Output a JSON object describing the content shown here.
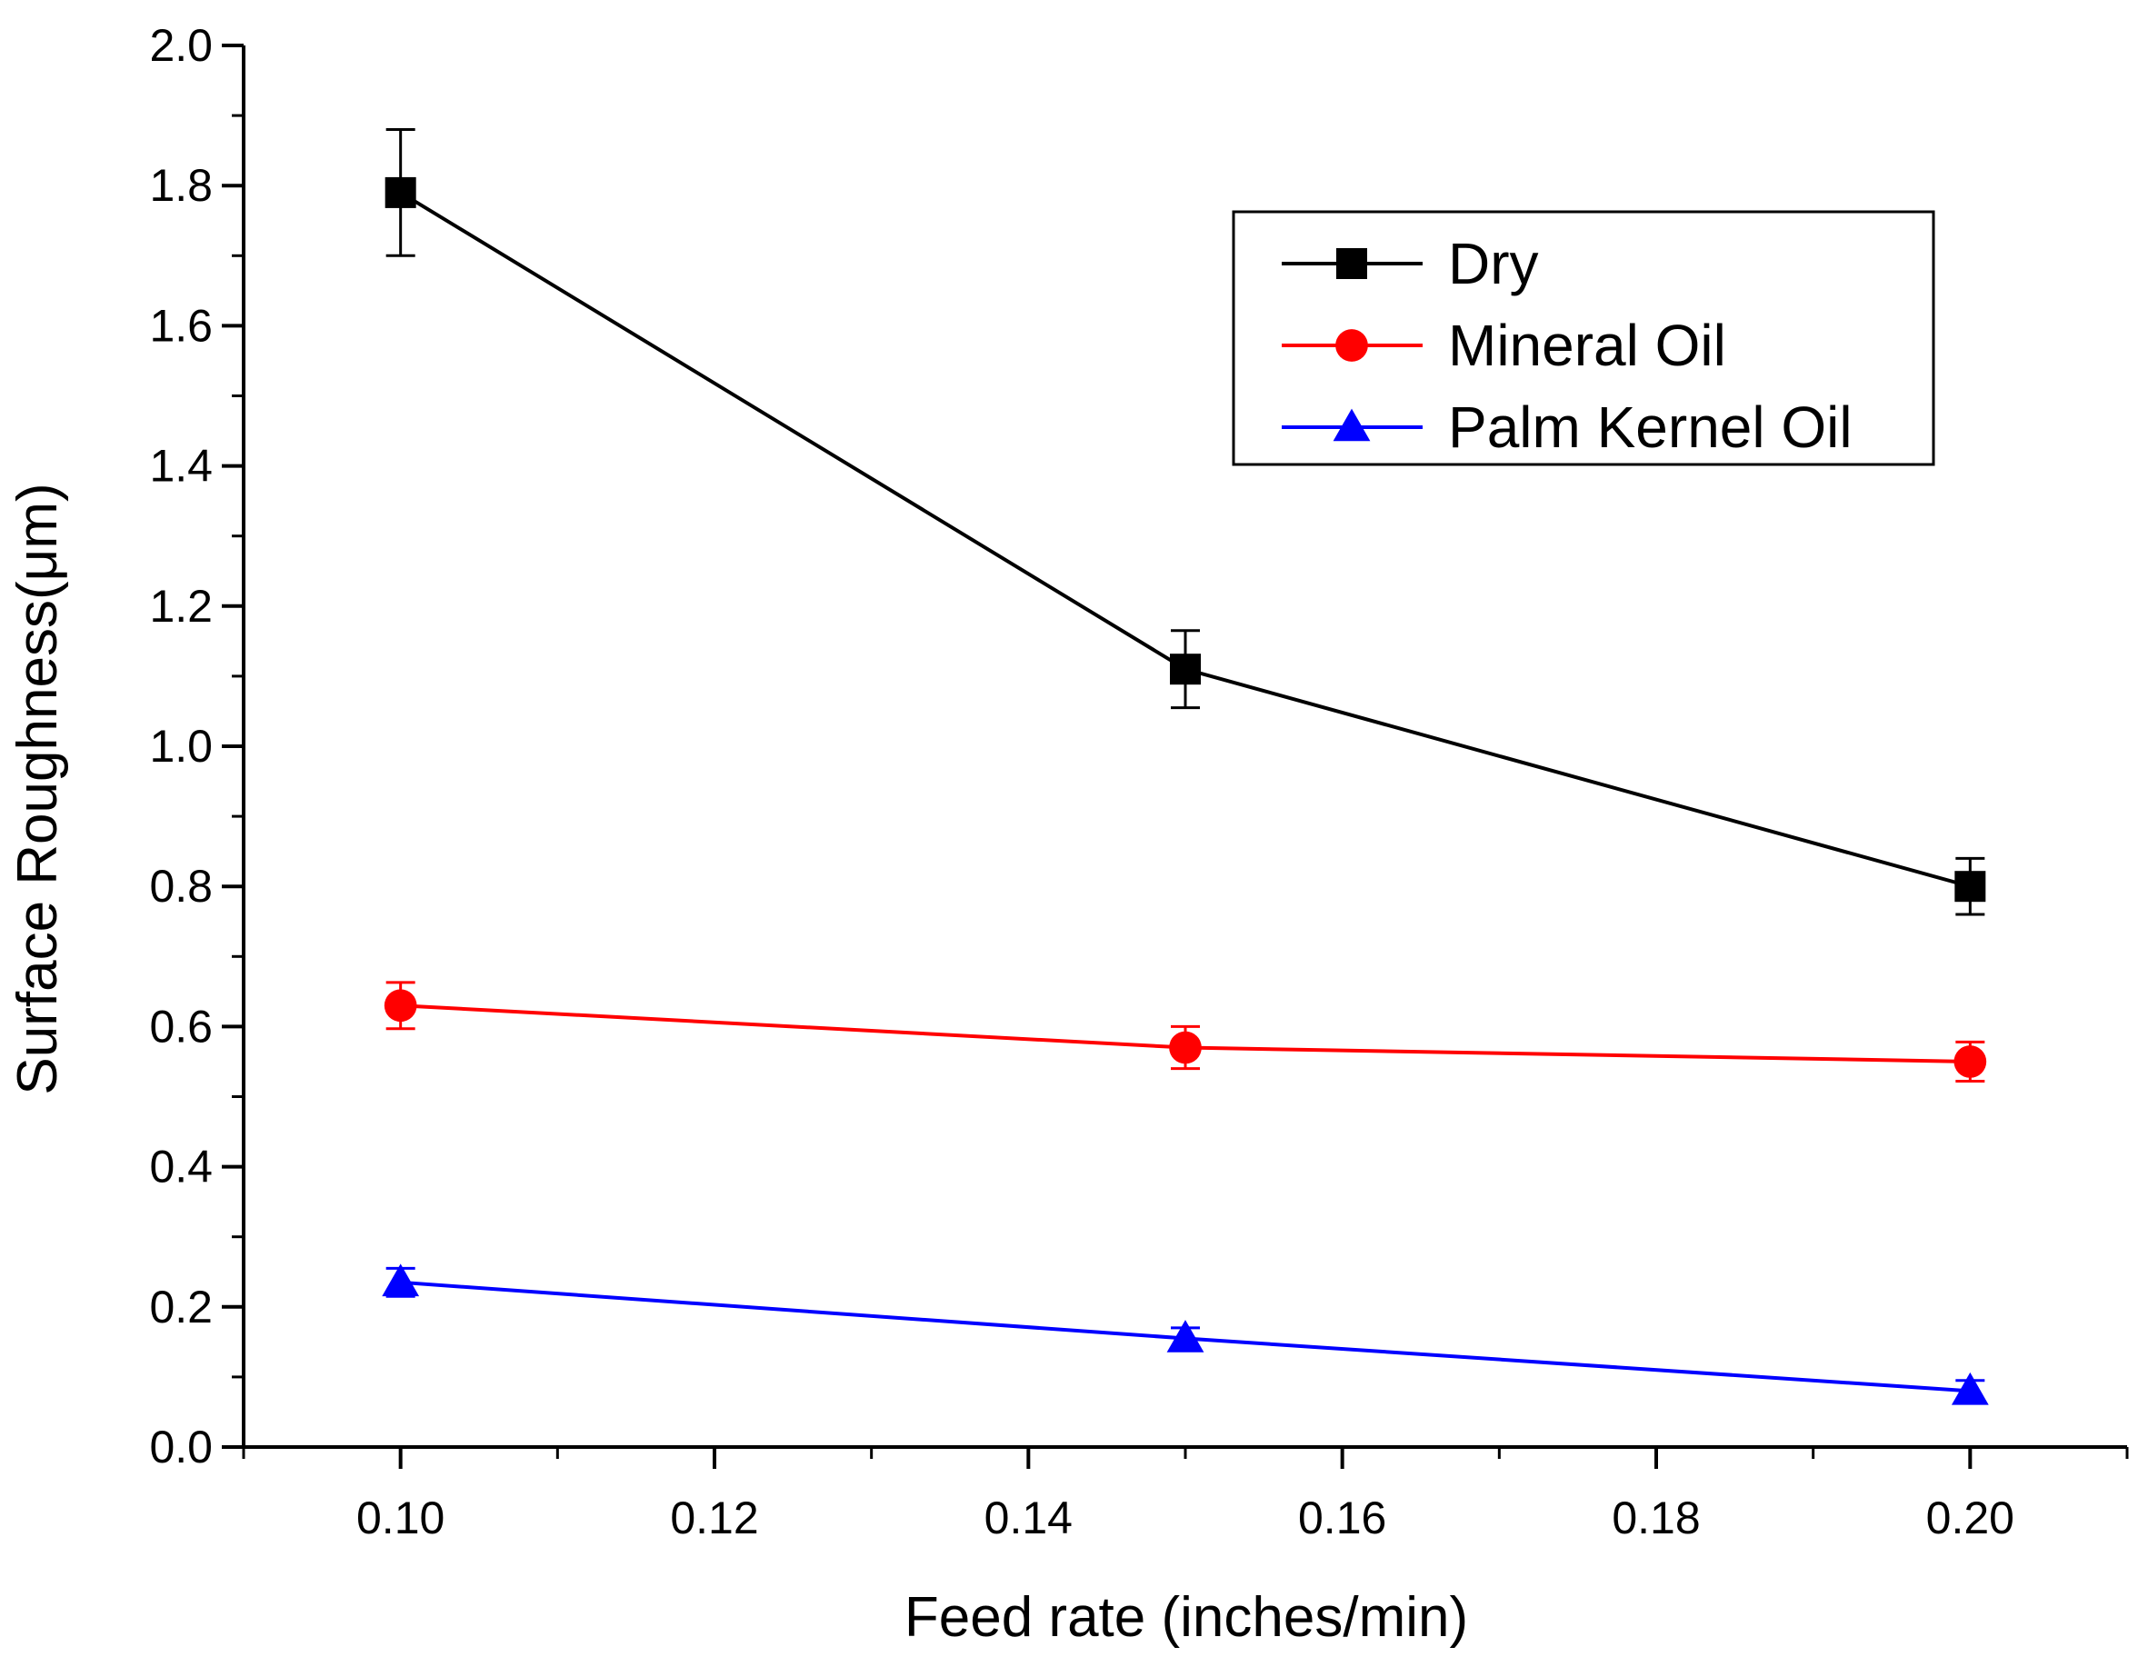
{
  "chart_data": {
    "type": "line",
    "title": "",
    "xlabel": "Feed rate (inches/min)",
    "ylabel": "Surface Roughness(μm)",
    "xlim": [
      0.09,
      0.21
    ],
    "ylim": [
      0.0,
      2.0
    ],
    "x_ticks": [
      "0.10",
      "0.12",
      "0.14",
      "0.16",
      "0.18",
      "0.20"
    ],
    "y_ticks": [
      "0.0",
      "0.2",
      "0.4",
      "0.6",
      "0.8",
      "1.0",
      "1.2",
      "1.4",
      "1.6",
      "1.8",
      "2.0"
    ],
    "legend_position": "top-right",
    "series": [
      {
        "name": "Dry",
        "color": "#000000",
        "marker": "square",
        "x": [
          0.1,
          0.15,
          0.2
        ],
        "values": [
          1.79,
          1.11,
          0.8
        ],
        "error": [
          0.09,
          0.055,
          0.04
        ]
      },
      {
        "name": "Mineral Oil",
        "color": "#ff0000",
        "marker": "circle",
        "x": [
          0.1,
          0.15,
          0.2
        ],
        "values": [
          0.63,
          0.57,
          0.55
        ],
        "error": [
          0.033,
          0.03,
          0.028
        ]
      },
      {
        "name": "Palm Kernel Oil",
        "color": "#0000ff",
        "marker": "triangle",
        "x": [
          0.1,
          0.15,
          0.2
        ],
        "values": [
          0.235,
          0.155,
          0.08
        ],
        "error": [
          0.02,
          0.015,
          0.015
        ]
      }
    ]
  }
}
